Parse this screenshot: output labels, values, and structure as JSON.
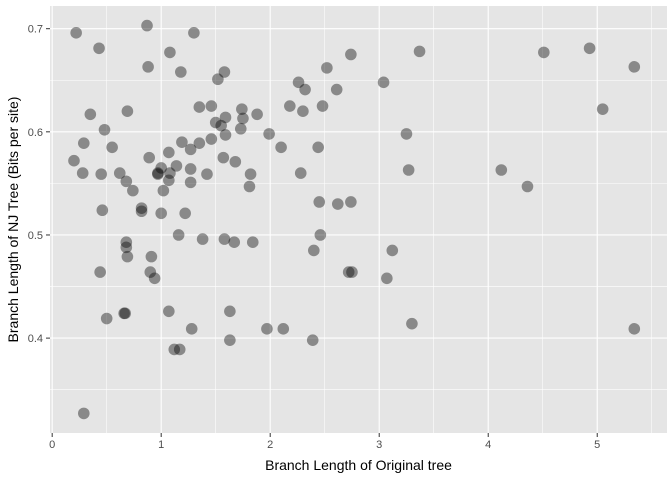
{
  "chart_data": {
    "type": "scatter",
    "title": "",
    "xlabel": "Branch Length of Original tree",
    "ylabel": "Branch Length of NJ Tree (Bits per site)",
    "xlim": [
      -0.02,
      5.64
    ],
    "ylim": [
      0.308,
      0.722
    ],
    "x_ticks": [
      0,
      1,
      2,
      3,
      4,
      5
    ],
    "y_ticks": [
      0.4,
      0.5,
      0.6,
      0.7
    ],
    "grid": true,
    "colors": {
      "panel": "#e5e5e5",
      "grid_major": "#ffffff",
      "point": "#000000",
      "point_opacity": 0.4
    },
    "points": [
      [
        0.22,
        0.696
      ],
      [
        0.29,
        0.589
      ],
      [
        0.35,
        0.617
      ],
      [
        0.43,
        0.681
      ],
      [
        0.48,
        0.602
      ],
      [
        0.2,
        0.572
      ],
      [
        0.28,
        0.56
      ],
      [
        0.45,
        0.559
      ],
      [
        0.46,
        0.524
      ],
      [
        0.44,
        0.464
      ],
      [
        0.55,
        0.585
      ],
      [
        0.62,
        0.56
      ],
      [
        0.68,
        0.552
      ],
      [
        0.74,
        0.543
      ],
      [
        0.69,
        0.62
      ],
      [
        0.66,
        0.424
      ],
      [
        0.67,
        0.424
      ],
      [
        0.68,
        0.488
      ],
      [
        0.69,
        0.479
      ],
      [
        0.89,
        0.575
      ],
      [
        0.88,
        0.663
      ],
      [
        1.18,
        0.658
      ],
      [
        1.3,
        0.696
      ],
      [
        1.35,
        0.624
      ],
      [
        1.46,
        0.625
      ],
      [
        1.52,
        0.651
      ],
      [
        1.58,
        0.658
      ],
      [
        1.74,
        0.622
      ],
      [
        1.88,
        0.617
      ],
      [
        1.99,
        0.598
      ],
      [
        1.73,
        0.603
      ],
      [
        1.57,
        0.575
      ],
      [
        1.68,
        0.571
      ],
      [
        1.82,
        0.559
      ],
      [
        1.81,
        0.547
      ],
      [
        2.1,
        0.585
      ],
      [
        2.18,
        0.625
      ],
      [
        2.26,
        0.648
      ],
      [
        2.3,
        0.62
      ],
      [
        2.44,
        0.585
      ],
      [
        2.48,
        0.625
      ],
      [
        2.28,
        0.56
      ],
      [
        2.45,
        0.532
      ],
      [
        2.74,
        0.532
      ],
      [
        2.46,
        0.5
      ],
      [
        2.4,
        0.485
      ],
      [
        2.72,
        0.464
      ],
      [
        2.75,
        0.464
      ],
      [
        3.04,
        0.648
      ],
      [
        3.25,
        0.598
      ],
      [
        3.27,
        0.563
      ],
      [
        3.12,
        0.485
      ],
      [
        3.07,
        0.458
      ],
      [
        1.97,
        0.409
      ],
      [
        2.12,
        0.409
      ],
      [
        2.39,
        0.398
      ],
      [
        1.63,
        0.426
      ],
      [
        1.63,
        0.398
      ],
      [
        1.28,
        0.409
      ],
      [
        1.12,
        0.389
      ],
      [
        1.17,
        0.389
      ],
      [
        1.07,
        0.426
      ],
      [
        0.91,
        0.479
      ],
      [
        0.9,
        0.464
      ],
      [
        0.94,
        0.458
      ],
      [
        1.16,
        0.5
      ],
      [
        1.38,
        0.496
      ],
      [
        1.58,
        0.496
      ],
      [
        1.67,
        0.493
      ],
      [
        1.84,
        0.493
      ],
      [
        1.22,
        0.521
      ],
      [
        1.27,
        0.551
      ],
      [
        1.42,
        0.559
      ],
      [
        1.35,
        0.589
      ],
      [
        1.0,
        0.521
      ],
      [
        1.07,
        0.58
      ],
      [
        0.97,
        0.56
      ],
      [
        1.0,
        0.565
      ],
      [
        4.12,
        0.563
      ],
      [
        4.36,
        0.547
      ],
      [
        4.93,
        0.681
      ],
      [
        5.05,
        0.622
      ],
      [
        5.34,
        0.663
      ],
      [
        5.34,
        0.409
      ],
      [
        0.87,
        0.703
      ],
      [
        1.08,
        0.677
      ],
      [
        0.82,
        0.526
      ],
      [
        0.82,
        0.523
      ],
      [
        0.68,
        0.493
      ],
      [
        0.5,
        0.419
      ],
      [
        0.29,
        0.327
      ],
      [
        0.97,
        0.559
      ],
      [
        1.02,
        0.543
      ],
      [
        1.08,
        0.56
      ],
      [
        1.07,
        0.553
      ],
      [
        1.14,
        0.567
      ],
      [
        1.19,
        0.59
      ],
      [
        1.27,
        0.583
      ],
      [
        1.27,
        0.564
      ],
      [
        1.46,
        0.593
      ],
      [
        1.5,
        0.609
      ],
      [
        1.55,
        0.606
      ],
      [
        1.59,
        0.597
      ],
      [
        1.59,
        0.614
      ],
      [
        1.75,
        0.613
      ],
      [
        2.32,
        0.641
      ],
      [
        2.52,
        0.662
      ],
      [
        2.61,
        0.641
      ],
      [
        2.74,
        0.675
      ],
      [
        3.37,
        0.678
      ],
      [
        4.51,
        0.677
      ],
      [
        2.62,
        0.53
      ],
      [
        3.3,
        0.414
      ]
    ]
  }
}
